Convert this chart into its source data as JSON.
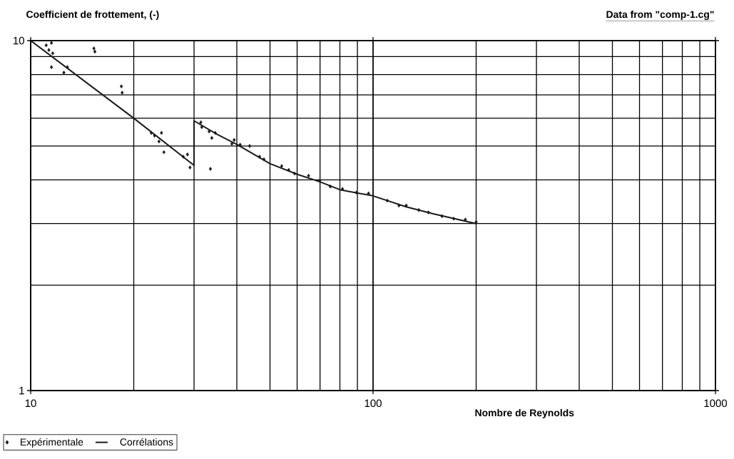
{
  "chart_data": {
    "type": "scatter",
    "ylabel": "Coefficient de frottement, (-)",
    "xlabel": "Nombre de Reynolds",
    "annotations": [
      "Data from \"comp-1.cg\""
    ],
    "log": "xy",
    "grid": true,
    "legend": "bottom left",
    "xlim": [
      10,
      1000
    ],
    "ylim": [
      1,
      10
    ],
    "xticks": [
      10,
      100,
      1000
    ],
    "yticks": [
      1,
      10
    ],
    "series": [
      {
        "name": "Expérimentale",
        "marker": "diamond",
        "color": "#1a1a1a",
        "x": [
          11.1,
          11.5,
          11.3,
          11.6,
          11.5,
          12.5,
          12.8,
          15.3,
          15.4,
          18.4,
          18.5,
          22.5,
          23.0,
          24.1,
          23.7,
          24.5,
          27.9,
          28.7,
          29.2,
          31.4,
          31.6,
          33.2,
          34.6,
          33.8,
          33.5,
          38.7,
          39.3,
          40.9,
          43.6,
          46.6,
          48.0,
          54.1,
          56.7,
          59.0,
          64.8,
          69.8,
          75.0,
          81.4,
          89.4,
          97,
          110,
          119,
          125,
          136,
          145,
          159,
          172,
          186,
          200
        ],
        "values": [
          9.7,
          9.85,
          9.4,
          9.2,
          8.4,
          8.1,
          8.4,
          9.5,
          9.3,
          7.4,
          7.1,
          5.45,
          5.35,
          5.45,
          5.15,
          4.8,
          4.66,
          4.73,
          4.34,
          5.84,
          5.66,
          5.5,
          5.45,
          5.27,
          4.3,
          5.07,
          5.2,
          5.04,
          5.0,
          4.66,
          4.58,
          4.38,
          4.27,
          4.17,
          4.11,
          3.98,
          3.83,
          3.77,
          3.68,
          3.66,
          3.49,
          3.38,
          3.38,
          3.28,
          3.23,
          3.15,
          3.1,
          3.08,
          3.03
        ]
      },
      {
        "name": "Corrélations",
        "type": "line",
        "marker": "none",
        "color": "#1a1a1a",
        "x": [
          10,
          20,
          30,
          30,
          35,
          40,
          50,
          60,
          70,
          80,
          100,
          125,
          150,
          200
        ],
        "values": [
          10,
          6,
          4.4,
          5.9,
          5.4,
          5.05,
          4.45,
          4.15,
          3.95,
          3.75,
          3.6,
          3.35,
          3.2,
          3.0
        ]
      }
    ]
  }
}
